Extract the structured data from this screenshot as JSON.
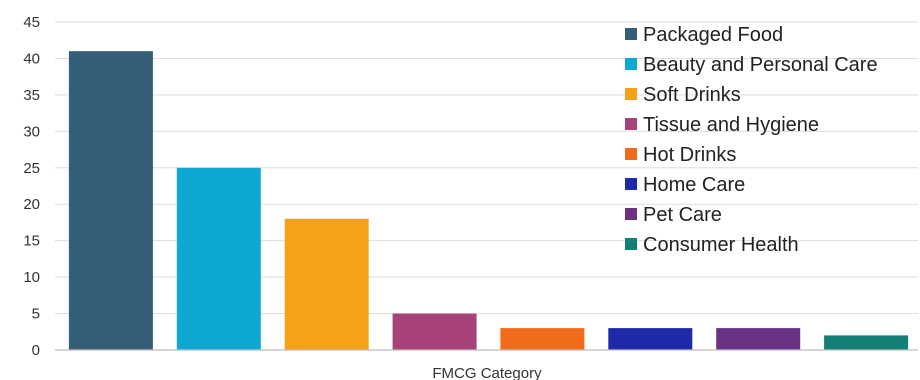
{
  "chart_data": {
    "type": "bar",
    "title": "",
    "xlabel": "FMCG Category",
    "ylabel": "",
    "ylim": [
      0,
      45
    ],
    "yticks": [
      0,
      5,
      10,
      15,
      20,
      25,
      30,
      35,
      40,
      45
    ],
    "grid": true,
    "legend_position": "top-right",
    "categories": [
      "Packaged Food",
      "Beauty and Personal Care",
      "Soft Drinks",
      "Tissue and Hygiene",
      "Hot Drinks",
      "Home Care",
      "Pet Care",
      "Consumer Health"
    ],
    "values": [
      41,
      25,
      18,
      5,
      3,
      3,
      3,
      2
    ],
    "colors": [
      "#355e78",
      "#0fa8d2",
      "#f7a11a",
      "#a8437a",
      "#f06b1a",
      "#1f2aa8",
      "#6a3184",
      "#137f77"
    ]
  }
}
